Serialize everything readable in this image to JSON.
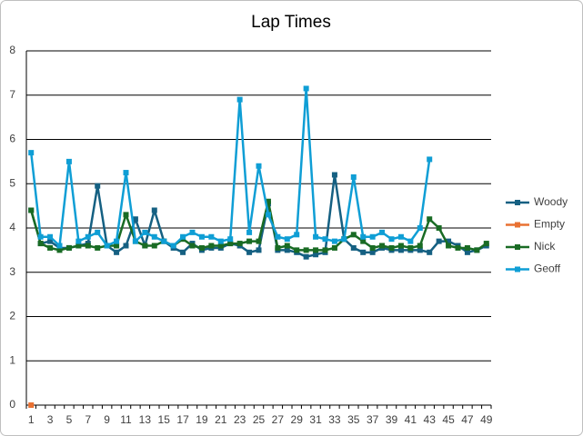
{
  "chart_data": {
    "type": "line",
    "title": "Lap Times",
    "categories": [
      1,
      null,
      3,
      null,
      5,
      null,
      7,
      null,
      9,
      null,
      11,
      null,
      13,
      null,
      15,
      null,
      17,
      null,
      19,
      null,
      21,
      null,
      23,
      null,
      25,
      null,
      27,
      null,
      29,
      null,
      31,
      null,
      33,
      null,
      35,
      null,
      37,
      null,
      39,
      null,
      41,
      null,
      43,
      null,
      45,
      null,
      47,
      null,
      49
    ],
    "series": [
      {
        "name": "Woody",
        "color": "#156082",
        "values": [
          4.4,
          3.65,
          3.7,
          3.55,
          3.55,
          3.6,
          3.65,
          4.95,
          3.6,
          3.45,
          3.6,
          4.2,
          3.6,
          4.4,
          3.7,
          3.55,
          3.45,
          3.65,
          3.5,
          3.55,
          3.55,
          3.65,
          3.6,
          3.45,
          3.5,
          4.55,
          3.5,
          3.5,
          3.45,
          3.35,
          3.4,
          3.45,
          5.2,
          3.75,
          3.55,
          3.45,
          3.45,
          3.55,
          3.5,
          3.5,
          3.5,
          3.5,
          3.45,
          3.7,
          3.7,
          3.6,
          3.45,
          3.5,
          3.6
        ]
      },
      {
        "name": "Empty",
        "color": "#e97132",
        "values": [
          0,
          null,
          null,
          null,
          null,
          null,
          null,
          null,
          null,
          null,
          null,
          null,
          null,
          null,
          null,
          null,
          null,
          null,
          null,
          null,
          null,
          null,
          null,
          null,
          null,
          null,
          null,
          null,
          null,
          null,
          null,
          null,
          null,
          null,
          null,
          null,
          null,
          null,
          null,
          null,
          null,
          null,
          null,
          null,
          null,
          null,
          null,
          null,
          null
        ]
      },
      {
        "name": "Nick",
        "color": "#196b24",
        "values": [
          4.4,
          3.65,
          3.55,
          3.5,
          3.55,
          3.6,
          3.6,
          3.55,
          3.6,
          3.6,
          4.3,
          3.7,
          3.6,
          3.6,
          3.7,
          3.6,
          3.75,
          3.6,
          3.55,
          3.6,
          3.6,
          3.65,
          3.65,
          3.7,
          3.7,
          4.6,
          3.55,
          3.6,
          3.5,
          3.5,
          3.5,
          3.5,
          3.55,
          3.75,
          3.85,
          3.7,
          3.55,
          3.6,
          3.55,
          3.6,
          3.55,
          3.6,
          4.2,
          4.0,
          3.6,
          3.55,
          3.55,
          3.5,
          3.65
        ]
      },
      {
        "name": "Geoff",
        "color": "#0f9ed5",
        "values": [
          5.7,
          3.8,
          3.8,
          3.6,
          5.5,
          3.7,
          3.8,
          3.9,
          3.6,
          3.7,
          5.25,
          3.7,
          3.9,
          3.8,
          3.7,
          3.6,
          3.8,
          3.9,
          3.8,
          3.8,
          3.7,
          3.75,
          6.9,
          3.9,
          5.4,
          4.3,
          3.8,
          3.75,
          3.85,
          7.15,
          3.8,
          3.75,
          3.7,
          3.75,
          5.15,
          3.8,
          3.8,
          3.9,
          3.75,
          3.8,
          3.7,
          4.0,
          5.55,
          null,
          null,
          null,
          null,
          null,
          null
        ]
      }
    ],
    "ylim": [
      0,
      8
    ],
    "yticks": [
      0,
      1,
      2,
      3,
      4,
      5,
      6,
      7,
      8
    ],
    "grid": true,
    "legend": "right"
  }
}
